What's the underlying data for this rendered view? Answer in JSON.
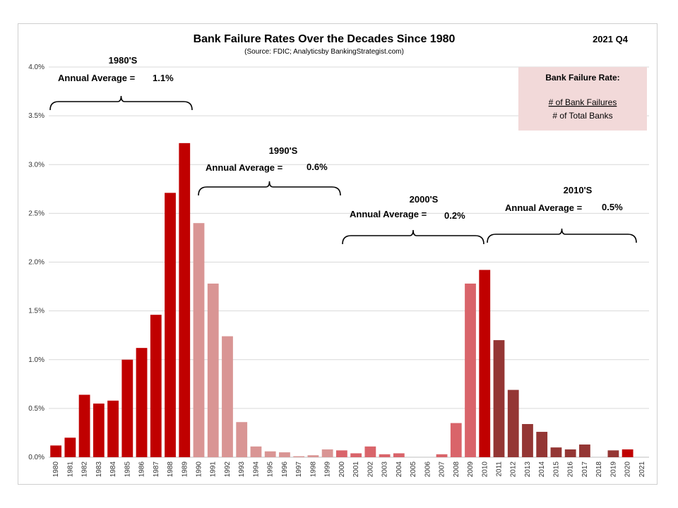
{
  "title": "Bank Failure Rates Over the Decades Since 1980",
  "subtitle": "(Source: FDIC; Analyticsby BankingStrategist.com)",
  "period": "2021 Q4",
  "legend_box": {
    "heading": "Bank Failure Rate:",
    "numerator": "# of Bank Failures",
    "denominator": "# of Total Banks",
    "fill": "#f2d9d9"
  },
  "chart_data": {
    "type": "bar",
    "title": "Bank Failure Rates Over the Decades Since 1980",
    "xlabel": "",
    "ylabel": "",
    "ylim": [
      0,
      4.0
    ],
    "y_unit": "%",
    "y_ticks": [
      "0.0%",
      "0.5%",
      "1.0%",
      "1.5%",
      "2.0%",
      "2.5%",
      "3.0%",
      "3.5%",
      "4.0%"
    ],
    "grid": true,
    "categories": [
      "1980",
      "1981",
      "1982",
      "1983",
      "1984",
      "1985",
      "1986",
      "1987",
      "1988",
      "1989",
      "1990",
      "1991",
      "1992",
      "1993",
      "1994",
      "1995",
      "1996",
      "1997",
      "1998",
      "1999",
      "2000",
      "2001",
      "2002",
      "2003",
      "2004",
      "2005",
      "2006",
      "2007",
      "2008",
      "2009",
      "2010",
      "2011",
      "2012",
      "2013",
      "2014",
      "2015",
      "2016",
      "2017",
      "2018",
      "2019",
      "2020",
      "2021"
    ],
    "values": [
      0.12,
      0.2,
      0.64,
      0.55,
      0.58,
      1.0,
      1.12,
      1.46,
      2.71,
      3.22,
      2.4,
      1.78,
      1.24,
      0.36,
      0.11,
      0.06,
      0.05,
      0.01,
      0.02,
      0.08,
      0.07,
      0.04,
      0.11,
      0.03,
      0.04,
      0.0,
      0.0,
      0.03,
      0.35,
      1.78,
      1.92,
      1.2,
      0.69,
      0.34,
      0.26,
      0.1,
      0.08,
      0.13,
      0.0,
      0.07,
      0.08,
      0.0
    ],
    "decade_colors": {
      "1980s": "#c00000",
      "1990s": "#d99594",
      "2000s": "#e8616a",
      "2009-2010": "#c00000",
      "2010s": "#943634"
    },
    "bar_colors": [
      "#c00000",
      "#c00000",
      "#c00000",
      "#c00000",
      "#c00000",
      "#c00000",
      "#c00000",
      "#c00000",
      "#c00000",
      "#c00000",
      "#d99594",
      "#d99594",
      "#d99594",
      "#d99594",
      "#d99594",
      "#d99594",
      "#d99594",
      "#d99594",
      "#d99594",
      "#d99594",
      "#d9646a",
      "#d9646a",
      "#d9646a",
      "#d9646a",
      "#d9646a",
      "#d9646a",
      "#d9646a",
      "#d9646a",
      "#d9646a",
      "#d9646a",
      "#c00000",
      "#943634",
      "#943634",
      "#943634",
      "#943634",
      "#943634",
      "#943634",
      "#943634",
      "#943634",
      "#943634",
      "#c00000",
      "#943634"
    ],
    "decades": [
      {
        "label": "1980'S",
        "avg_label": "Annual Average =",
        "avg_value": "1.1%",
        "from": "1980",
        "to": "1989"
      },
      {
        "label": "1990'S",
        "avg_label": "Annual Average =",
        "avg_value": "0.6%",
        "from": "1990",
        "to": "1999"
      },
      {
        "label": "2000'S",
        "avg_label": "Annual Average =",
        "avg_value": "0.2%",
        "from": "2000",
        "to": "2009"
      },
      {
        "label": "2010'S",
        "avg_label": "Annual Average =",
        "avg_value": "0.5%",
        "from": "2010",
        "to": "2020"
      }
    ]
  }
}
